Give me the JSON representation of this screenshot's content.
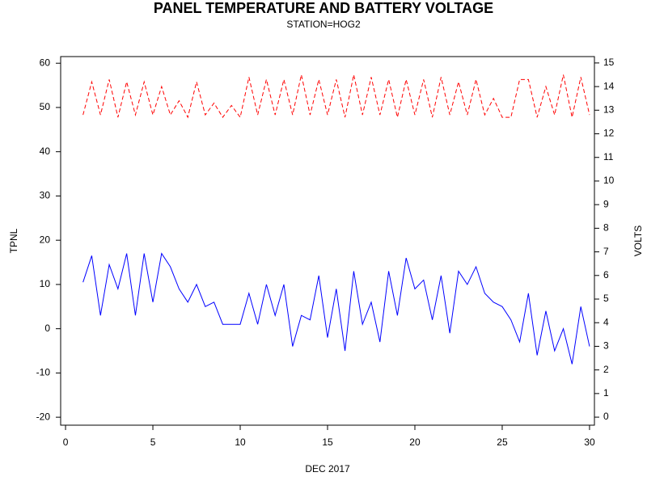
{
  "chart_data": {
    "type": "line",
    "title": "PANEL TEMPERATURE AND BATTERY VOLTAGE",
    "subtitle": "STATION=HOG2",
    "x_label": "DEC 2017",
    "y_label": "TPNL",
    "y2_label": "VOLTS",
    "x": [
      1,
      1.5,
      2,
      2.5,
      3,
      3.5,
      4,
      4.5,
      5,
      5.5,
      6,
      6.5,
      7,
      7.5,
      8,
      8.5,
      9,
      9.5,
      10,
      10.5,
      11,
      11.5,
      12,
      12.5,
      13,
      13.5,
      14,
      14.5,
      15,
      15.5,
      16,
      16.5,
      17,
      17.5,
      18,
      18.5,
      19,
      19.5,
      20,
      20.5,
      21,
      21.5,
      22,
      22.5,
      23,
      23.5,
      24,
      24.5,
      25,
      25.5,
      26,
      26.5,
      27,
      27.5,
      28,
      28.5,
      29,
      29.5,
      30
    ],
    "series": [
      {
        "name": "TPNL",
        "color": "#0000ff",
        "dash": false,
        "values": [
          10.5,
          16.5,
          3,
          14.5,
          9,
          17,
          3,
          17,
          6,
          17,
          14,
          9,
          6,
          10,
          5,
          6,
          1,
          1,
          1,
          8,
          1,
          10,
          3,
          10,
          -4,
          3,
          2,
          12,
          -2,
          9,
          -5,
          13,
          1,
          6,
          -3,
          13,
          3,
          16,
          9,
          11,
          2,
          12,
          -1,
          13,
          10,
          14,
          8,
          6,
          5,
          2,
          -3,
          8,
          -6,
          4,
          -5,
          0,
          -8,
          5,
          -4
        ]
      },
      {
        "name": "VOLTS",
        "color": "#ff0000",
        "dash": true,
        "axis": "y2",
        "values": [
          12.8,
          14.2,
          12.8,
          14.3,
          12.7,
          14.2,
          12.8,
          14.2,
          12.8,
          14.0,
          12.8,
          13.4,
          12.7,
          14.2,
          12.8,
          13.3,
          12.7,
          13.2,
          12.7,
          14.4,
          12.8,
          14.3,
          12.8,
          14.3,
          12.8,
          14.5,
          12.8,
          14.3,
          12.8,
          14.3,
          12.7,
          14.5,
          12.8,
          14.4,
          12.8,
          14.3,
          12.7,
          14.3,
          12.8,
          14.3,
          12.7,
          14.4,
          12.8,
          14.2,
          12.8,
          14.3,
          12.8,
          13.5,
          12.7,
          12.7,
          14.3,
          14.3,
          12.7,
          14.0,
          12.8,
          14.5,
          12.7,
          14.4,
          12.8
        ]
      }
    ],
    "xlim": [
      -0.28,
      30.28
    ],
    "xticks": [
      0,
      5,
      10,
      15,
      20,
      25,
      30
    ],
    "ylim": [
      -21.8,
      61.5
    ],
    "yticks": [
      -20,
      -10,
      0,
      10,
      20,
      30,
      40,
      50,
      60
    ],
    "y2lim": [
      -0.34,
      15.27
    ],
    "y2ticks": [
      0,
      1,
      2,
      3,
      4,
      5,
      6,
      7,
      8,
      9,
      10,
      11,
      12,
      13,
      14,
      15
    ]
  }
}
